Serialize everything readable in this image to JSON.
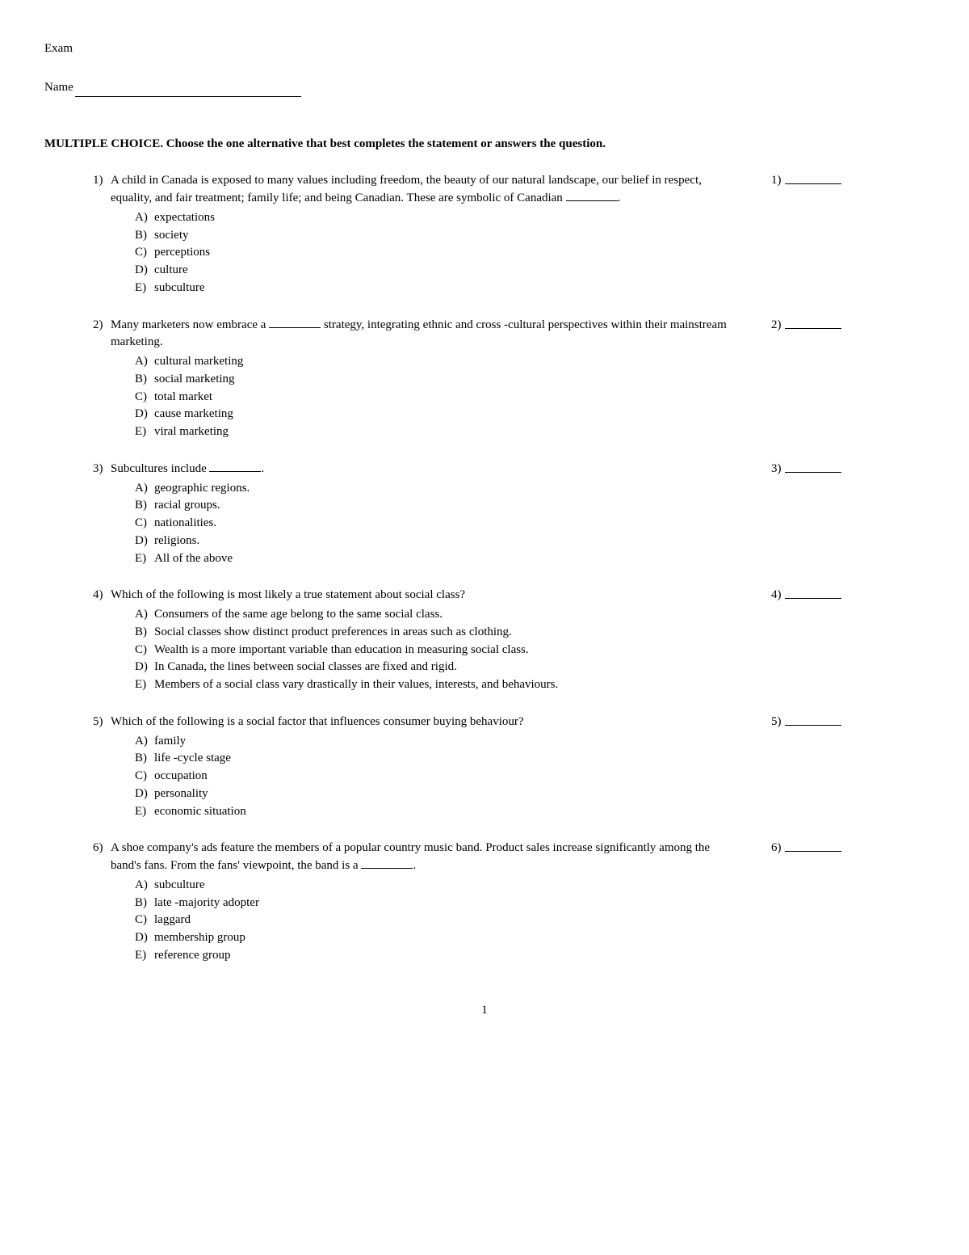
{
  "header": {
    "exam_label": "Exam",
    "name_label": "Name"
  },
  "instructions": "MULTIPLE CHOICE.  Choose the one alternative that best completes the statement or answers the question.",
  "page_number": "1",
  "choice_letters": [
    "A)",
    "B)",
    "C)",
    "D)",
    "E)"
  ],
  "questions": [
    {
      "num": "1)",
      "text": "A child in Canada is exposed to many values including freedom, the beauty of our natural landscape, our belief in respect, equality, and fair treatment; family life; and being Canadian. These are symbolic of Canadian ________.",
      "ans_num": "1)",
      "choices": [
        "expectations",
        "society",
        "perceptions",
        "culture",
        "subculture"
      ]
    },
    {
      "num": "2)",
      "text": "Many marketers now embrace a ________ strategy, integrating ethnic and cross -cultural perspectives within their mainstream marketing.",
      "ans_num": "2)",
      "choices": [
        "cultural marketing",
        "social marketing",
        "total market",
        "cause marketing",
        "viral marketing"
      ]
    },
    {
      "num": "3)",
      "text": "Subcultures include ________.",
      "ans_num": "3)",
      "choices": [
        "geographic regions.",
        "racial groups.",
        "nationalities.",
        "religions.",
        "All of the above"
      ]
    },
    {
      "num": "4)",
      "text": "Which of the following is most likely a true statement about social class?",
      "ans_num": "4)",
      "choices": [
        "Consumers of the same age belong to the same social class.",
        "Social classes show distinct product preferences in areas such as clothing.",
        "Wealth is a more important variable than education in measuring social class.",
        "In Canada, the lines between social classes are fixed and rigid.",
        "Members of a social class vary drastically in their values, interests, and behaviours."
      ]
    },
    {
      "num": "5)",
      "text": "Which of the following is a social factor that influences consumer buying behaviour?",
      "ans_num": "5)",
      "choices": [
        "family",
        "life -cycle stage",
        "occupation",
        "personality",
        "economic situation"
      ]
    },
    {
      "num": "6)",
      "text": "A shoe company's ads feature the members of a popular country music band. Product sales increase significantly among the band's fans. From the fans' viewpoint, the band is a ________.",
      "ans_num": "6)",
      "choices": [
        "subculture",
        "late -majority adopter",
        "laggard",
        "membership group",
        "reference group"
      ]
    }
  ]
}
